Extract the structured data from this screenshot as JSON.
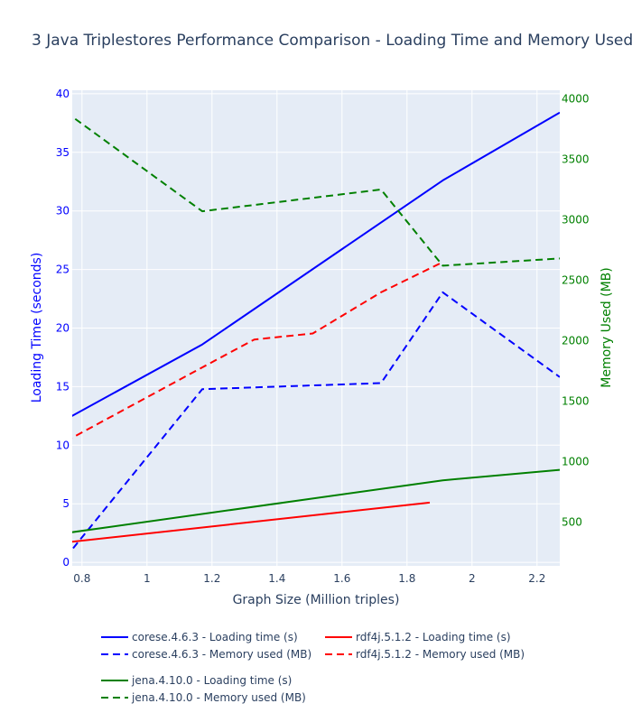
{
  "chart_data": {
    "type": "line",
    "title": "3 Java Triplestores Performance Comparison - Loading Time and Memory Used",
    "xlabel": "Graph Size (Million triples)",
    "ylabel_left": "Loading Time (seconds)",
    "ylabel_right": "Memory Used (MB)",
    "xlim": [
      0.77,
      2.27
    ],
    "ylim_left": [
      -0.3,
      40.3
    ],
    "ylim_right": [
      140,
      4070
    ],
    "x_ticks": [
      0.8,
      1,
      1.2,
      1.4,
      1.6,
      1.8,
      2,
      2.2
    ],
    "x_tick_labels": [
      "0.8",
      "1",
      "1.2",
      "1.4",
      "1.6",
      "1.8",
      "2",
      "2.2"
    ],
    "y_left_ticks": [
      0,
      5,
      10,
      15,
      20,
      25,
      30,
      35,
      40
    ],
    "y_left_tick_labels": [
      "0",
      "5",
      "10",
      "15",
      "20",
      "25",
      "30",
      "35",
      "40"
    ],
    "y_right_ticks": [
      500,
      1000,
      1500,
      2000,
      2500,
      3000,
      3500,
      4000
    ],
    "y_right_tick_labels": [
      "500",
      "1000",
      "1500",
      "2000",
      "2500",
      "3000",
      "3500",
      "4000"
    ],
    "grid": true,
    "legend_position": "bottom",
    "colors": {
      "left_axis": "#0000ff",
      "right_axis": "#008000",
      "plot_bg": "#e5ecf6",
      "grid": "#ffffff"
    },
    "series": [
      {
        "name": "corese.4.6.3 - Loading time (s)",
        "axis": "left",
        "dash": "solid",
        "color": "#0000ff",
        "x": [
          0.75,
          1.17,
          1.91,
          2.27
        ],
        "y": [
          12.2,
          18.6,
          32.6,
          38.4
        ]
      },
      {
        "name": "corese.4.6.3 - Memory used (MB)",
        "axis": "right",
        "dash": "dash",
        "color": "#0000ff",
        "x": [
          0.75,
          1.17,
          1.72,
          1.91,
          2.27
        ],
        "y": [
          210,
          1600,
          1650,
          2400,
          1700
        ]
      },
      {
        "name": "rdf4j.5.1.2 - Loading time (s)",
        "axis": "left",
        "dash": "solid",
        "color": "#ff0000",
        "x": [
          0.75,
          1.87
        ],
        "y": [
          1.7,
          5.1
        ]
      },
      {
        "name": "rdf4j.5.1.2 - Memory used (MB)",
        "axis": "right",
        "dash": "dash",
        "color": "#ff0000",
        "x": [
          0.75,
          1.17,
          1.33,
          1.51,
          1.72,
          1.91
        ],
        "y": [
          1170,
          1780,
          2010,
          2060,
          2400,
          2650
        ]
      },
      {
        "name": "jena.4.10.0 - Loading time (s)",
        "axis": "left",
        "dash": "solid",
        "color": "#008000",
        "x": [
          0.75,
          1.91,
          2.27
        ],
        "y": [
          2.5,
          7.0,
          7.9
        ]
      },
      {
        "name": "jena.4.10.0 - Memory used (MB)",
        "axis": "right",
        "dash": "dash",
        "color": "#008000",
        "x": [
          0.75,
          1.17,
          1.72,
          1.91,
          2.27
        ],
        "y": [
          3890,
          3070,
          3250,
          2620,
          2680
        ]
      }
    ]
  }
}
